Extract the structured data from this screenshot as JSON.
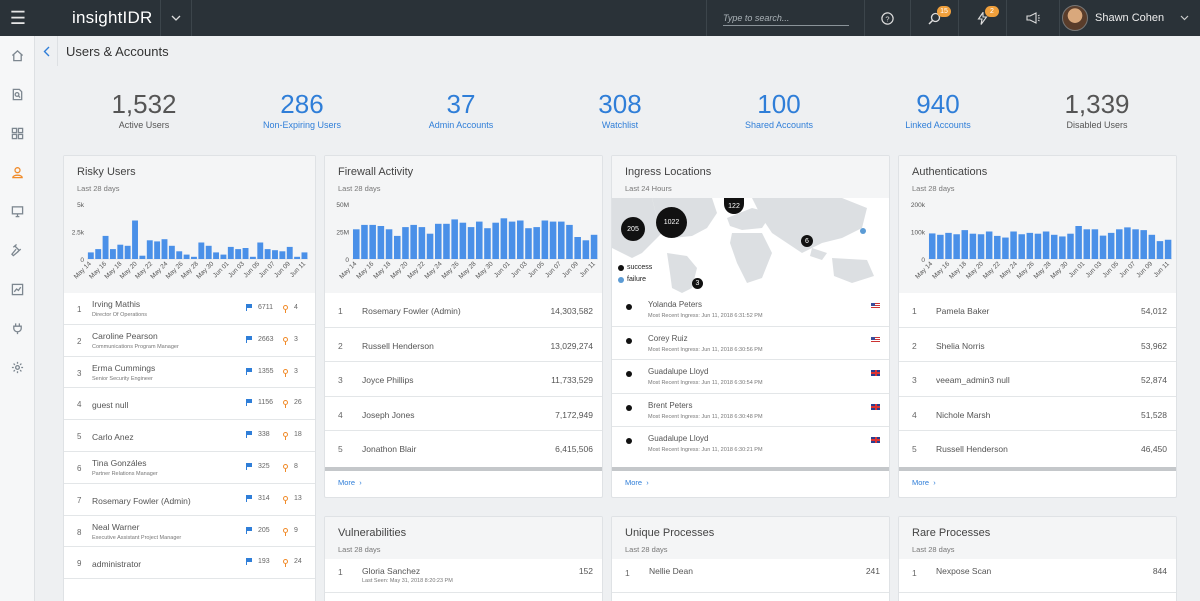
{
  "app": {
    "brand": "insightIDR",
    "search_placeholder": "Type to search...",
    "user_name": "Shawn Cohen",
    "badge_investigations": "15",
    "badge_alerts": "2"
  },
  "page": {
    "title": "Users & Accounts"
  },
  "stats": [
    {
      "value": "1,532",
      "label": "Active Users"
    },
    {
      "value": "286",
      "label": "Non-Expiring Users"
    },
    {
      "value": "37",
      "label": "Admin Accounts"
    },
    {
      "value": "308",
      "label": "Watchlist"
    },
    {
      "value": "100",
      "label": "Shared Accounts"
    },
    {
      "value": "940",
      "label": "Linked Accounts"
    },
    {
      "value": "1,339",
      "label": "Disabled Users"
    }
  ],
  "risky": {
    "title": "Risky Users",
    "subtitle": "Last 28 days",
    "users": [
      {
        "rank": "1",
        "name": "Irving Mathis",
        "role": "Director Of Operations",
        "flags": "6711",
        "pins": "4"
      },
      {
        "rank": "2",
        "name": "Caroline Pearson",
        "role": "Communications Program Manager",
        "flags": "2663",
        "pins": "3"
      },
      {
        "rank": "3",
        "name": "Erma Cummings",
        "role": "Senior Security Engineer",
        "flags": "1355",
        "pins": "3"
      },
      {
        "rank": "4",
        "name": "guest null",
        "role": "",
        "flags": "1156",
        "pins": "26"
      },
      {
        "rank": "5",
        "name": "Carlo Anez",
        "role": "",
        "flags": "338",
        "pins": "18"
      },
      {
        "rank": "6",
        "name": "Tina Gonzáles",
        "role": "Partner Relations Manager",
        "flags": "325",
        "pins": "8"
      },
      {
        "rank": "7",
        "name": "Rosemary Fowler (Admin)",
        "role": "",
        "flags": "314",
        "pins": "13"
      },
      {
        "rank": "8",
        "name": "Neal Warner",
        "role": "Executive Assistant Project Manager",
        "flags": "205",
        "pins": "9"
      },
      {
        "rank": "9",
        "name": "administrator",
        "role": "",
        "flags": "193",
        "pins": "24"
      }
    ]
  },
  "firewall": {
    "title": "Firewall Activity",
    "subtitle": "Last 28 days",
    "more": "More",
    "rows": [
      {
        "rank": "1",
        "name": "Rosemary Fowler (Admin)",
        "value": "14,303,582"
      },
      {
        "rank": "2",
        "name": "Russell Henderson",
        "value": "13,029,274"
      },
      {
        "rank": "3",
        "name": "Joyce Phillips",
        "value": "11,733,529"
      },
      {
        "rank": "4",
        "name": "Joseph Jones",
        "value": "7,172,949"
      },
      {
        "rank": "5",
        "name": "Jonathon Blair",
        "value": "6,415,506"
      }
    ]
  },
  "ingress": {
    "title": "Ingress Locations",
    "subtitle": "Last 24 Hours",
    "more": "More",
    "legend_success": "success",
    "legend_failure": "failure",
    "clusters": [
      "205",
      "1022",
      "122",
      "6",
      "3"
    ],
    "rows": [
      {
        "name": "Yolanda Peters",
        "sub": "Most Recent Ingress: Jun 11, 2018 6:31:52 PM",
        "flag": "us"
      },
      {
        "name": "Corey Ruiz",
        "sub": "Most Recent Ingress: Jun 11, 2018 6:30:56 PM",
        "flag": "us"
      },
      {
        "name": "Guadalupe Lloyd",
        "sub": "Most Recent Ingress: Jun 11, 2018 6:30:54 PM",
        "flag": "uk"
      },
      {
        "name": "Brent Peters",
        "sub": "Most Recent Ingress: Jun 11, 2018 6:30:48 PM",
        "flag": "uk"
      },
      {
        "name": "Guadalupe Lloyd",
        "sub": "Most Recent Ingress: Jun 11, 2018 6:30:21 PM",
        "flag": "uk"
      }
    ]
  },
  "auth": {
    "title": "Authentications",
    "subtitle": "Last 28 days",
    "more": "More",
    "rows": [
      {
        "rank": "1",
        "name": "Pamela Baker",
        "value": "54,012"
      },
      {
        "rank": "2",
        "name": "Shelia Norris",
        "value": "53,962"
      },
      {
        "rank": "3",
        "name": "veeam_admin3 null",
        "value": "52,874"
      },
      {
        "rank": "4",
        "name": "Nichole Marsh",
        "value": "51,528"
      },
      {
        "rank": "5",
        "name": "Russell Henderson",
        "value": "46,450"
      }
    ]
  },
  "vulns": {
    "title": "Vulnerabilities",
    "subtitle": "Last 28 days",
    "rank": "1",
    "name": "Gloria Sanchez",
    "sub": "Last Seen: May 31, 2018 8:20:23 PM",
    "value": "152"
  },
  "uniq": {
    "title": "Unique Processes",
    "subtitle": "Last 28 days",
    "rank": "1",
    "name": "Nellie Dean",
    "value": "241"
  },
  "rare": {
    "title": "Rare Processes",
    "subtitle": "Last 28 days",
    "rank": "1",
    "name": "Nexpose Scan",
    "value": "844"
  },
  "chart_data": [
    {
      "type": "bar",
      "title": "Risky Users",
      "color": "#4a90e8",
      "ytick_labels": [
        "5k",
        "2.5k",
        "0"
      ],
      "ylim": [
        0,
        5000
      ],
      "xtick_labels": [
        "May 14",
        "May 16",
        "May 18",
        "May 20",
        "May 22",
        "May 24",
        "May 26",
        "May 28",
        "May 30",
        "Jun 01",
        "Jun 03",
        "Jun 05",
        "Jun 07",
        "Jun 09",
        "Jun 11"
      ],
      "values": [
        600,
        900,
        2100,
        900,
        1300,
        1200,
        3500,
        300,
        1700,
        1600,
        1800,
        1200,
        700,
        400,
        200,
        1500,
        1200,
        600,
        400,
        1100,
        900,
        1000,
        200,
        1500,
        900,
        800,
        700,
        1100,
        200,
        600
      ]
    },
    {
      "type": "bar",
      "title": "Firewall Activity",
      "color": "#4a90e8",
      "ytick_labels": [
        "50M",
        "25M",
        "0"
      ],
      "ylim": [
        0,
        50000000
      ],
      "xtick_labels": [
        "May 14",
        "May 16",
        "May 18",
        "May 20",
        "May 22",
        "May 24",
        "May 26",
        "May 28",
        "May 30",
        "Jun 01",
        "Jun 03",
        "Jun 05",
        "Jun 07",
        "Jun 09",
        "Jun 11"
      ],
      "values": [
        27000000,
        31000000,
        31000000,
        30000000,
        27000000,
        21000000,
        29000000,
        31000000,
        29000000,
        23000000,
        32000000,
        32000000,
        36000000,
        33000000,
        29000000,
        34000000,
        28000000,
        33000000,
        37000000,
        34000000,
        35000000,
        28000000,
        29000000,
        35000000,
        34000000,
        34000000,
        31000000,
        20000000,
        17000000,
        22000000
      ]
    },
    {
      "type": "bar",
      "title": "Authentications",
      "color": "#4a90e8",
      "ytick_labels": [
        "200k",
        "100k",
        "0"
      ],
      "ylim": [
        0,
        200000
      ],
      "xtick_labels": [
        "May 14",
        "May 16",
        "May 18",
        "May 20",
        "May 22",
        "May 24",
        "May 26",
        "May 28",
        "May 30",
        "Jun 01",
        "Jun 03",
        "Jun 05",
        "Jun 07",
        "Jun 09",
        "Jun 11"
      ],
      "values": [
        93000,
        88000,
        95000,
        90000,
        105000,
        92000,
        90000,
        100000,
        84000,
        78000,
        100000,
        90000,
        95000,
        92000,
        100000,
        88000,
        82000,
        92000,
        120000,
        108000,
        108000,
        85000,
        95000,
        108000,
        115000,
        108000,
        105000,
        88000,
        65000,
        70000
      ]
    }
  ]
}
